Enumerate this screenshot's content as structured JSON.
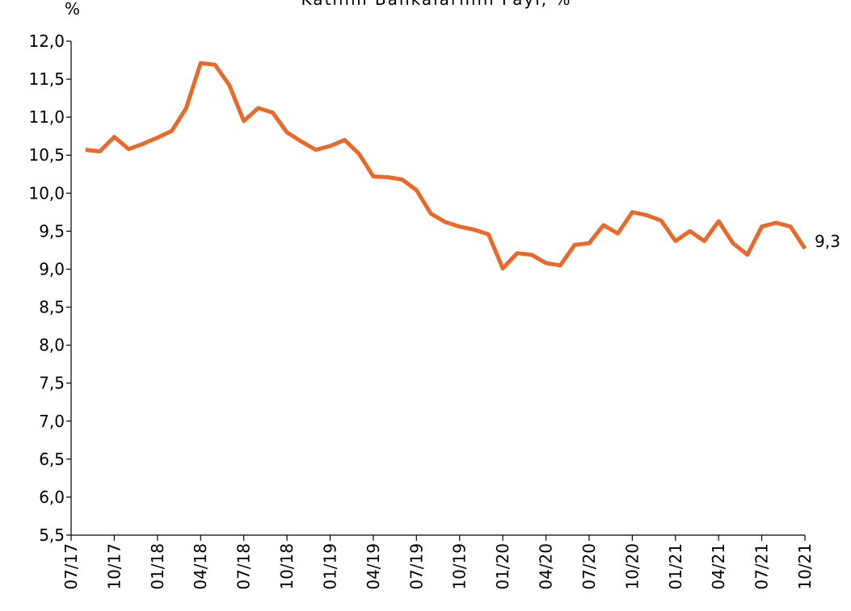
{
  "chart_data": {
    "type": "line",
    "title": "Katılım Bankalarının Payı, %",
    "ylabel": "%",
    "categories": [
      "07/17",
      null,
      null,
      "10/17",
      null,
      null,
      "01/18",
      null,
      null,
      "04/18",
      null,
      null,
      "07/18",
      null,
      null,
      "10/18",
      null,
      null,
      "01/19",
      null,
      null,
      "04/19",
      null,
      null,
      "07/19",
      null,
      null,
      "10/19",
      null,
      null,
      "01/20",
      null,
      null,
      "04/20",
      null,
      null,
      "07/20",
      null,
      null,
      "10/20",
      null,
      null,
      "01/21",
      null,
      null,
      "04/21",
      null,
      null,
      "07/21",
      null,
      null,
      "10/21"
    ],
    "series": [
      {
        "name": "Katılım Bankalarının Payı",
        "color": "#e8692a",
        "values": [
          null,
          10.57,
          10.55,
          10.74,
          10.58,
          10.65,
          10.73,
          10.82,
          11.12,
          11.71,
          11.69,
          11.42,
          10.95,
          11.12,
          11.06,
          10.8,
          10.68,
          10.57,
          10.62,
          10.7,
          10.52,
          10.22,
          10.21,
          10.18,
          10.04,
          9.73,
          9.62,
          9.56,
          9.52,
          9.46,
          9.01,
          9.21,
          9.19,
          9.08,
          9.05,
          9.32,
          9.34,
          9.58,
          9.47,
          9.75,
          9.71,
          9.64,
          9.37,
          9.5,
          9.37,
          9.63,
          9.34,
          9.19,
          9.56,
          9.61,
          9.56,
          9.27
        ],
        "value_labels": [
          null,
          null,
          null,
          null,
          null,
          null,
          null,
          null,
          null,
          null,
          null,
          null,
          null,
          null,
          null,
          null,
          null,
          null,
          null,
          null,
          null,
          null,
          null,
          null,
          null,
          null,
          null,
          null,
          null,
          null,
          null,
          null,
          null,
          null,
          null,
          null,
          null,
          null,
          null,
          null,
          null,
          null,
          null,
          null,
          null,
          null,
          null,
          null,
          null,
          null,
          null,
          "9,3"
        ]
      }
    ],
    "ylim": [
      5.5,
      12.0
    ],
    "yticks": [
      {
        "value": 5.5,
        "label": "5,5"
      },
      {
        "value": 6.0,
        "label": "6,0"
      },
      {
        "value": 6.5,
        "label": "6,5"
      },
      {
        "value": 7.0,
        "label": "7,0"
      },
      {
        "value": 7.5,
        "label": "7,5"
      },
      {
        "value": 8.0,
        "label": "8,0"
      },
      {
        "value": 8.5,
        "label": "8,5"
      },
      {
        "value": 9.0,
        "label": "9,0"
      },
      {
        "value": 9.5,
        "label": "9,5"
      },
      {
        "value": 10.0,
        "label": "10,0"
      },
      {
        "value": 10.5,
        "label": "10,5"
      },
      {
        "value": 11.0,
        "label": "11,0"
      },
      {
        "value": 11.5,
        "label": "11,5"
      },
      {
        "value": 12.0,
        "label": "12,0"
      }
    ],
    "grid": false
  }
}
